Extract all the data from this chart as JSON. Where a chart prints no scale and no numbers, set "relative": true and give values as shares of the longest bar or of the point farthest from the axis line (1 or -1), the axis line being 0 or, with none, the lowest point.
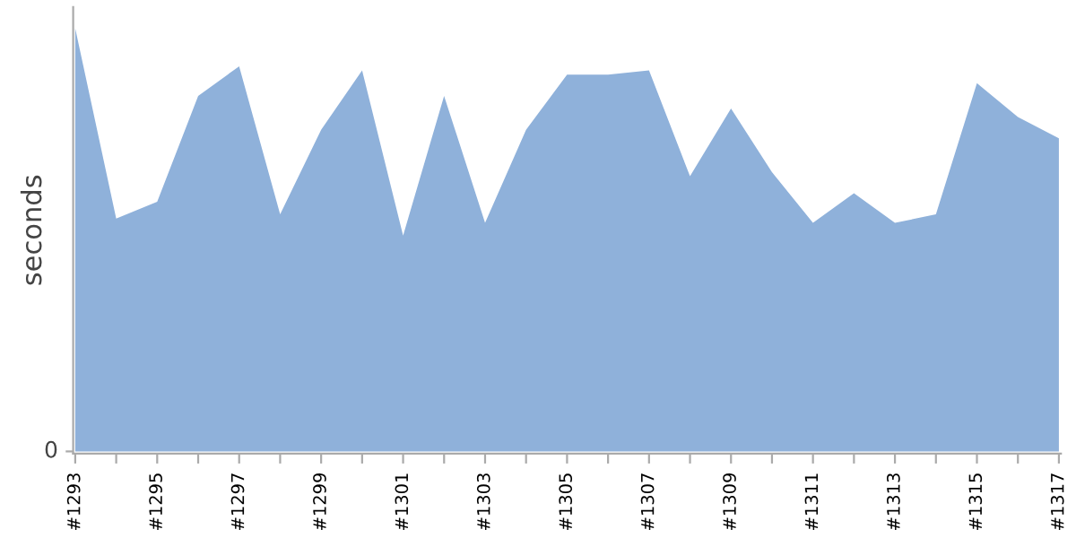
{
  "chart_data": {
    "type": "area",
    "ylabel": "seconds",
    "relative": true,
    "annotations": [
      "0"
    ],
    "color": "#8fb1da",
    "grid": false,
    "legend": false,
    "categories": [
      "#1293",
      null,
      "#1295",
      null,
      "#1297",
      null,
      "#1299",
      null,
      "#1301",
      null,
      "#1303",
      null,
      "#1305",
      null,
      "#1307",
      null,
      "#1309",
      null,
      "#1311",
      null,
      "#1313",
      null,
      "#1315",
      null,
      "#1317"
    ],
    "values": [
      1.0,
      0.55,
      0.59,
      0.84,
      0.91,
      0.56,
      0.76,
      0.9,
      0.51,
      0.84,
      0.54,
      0.76,
      0.89,
      0.89,
      0.9,
      0.65,
      0.81,
      0.66,
      0.54,
      0.61,
      0.54,
      0.56,
      0.87,
      0.79,
      0.74
    ]
  }
}
